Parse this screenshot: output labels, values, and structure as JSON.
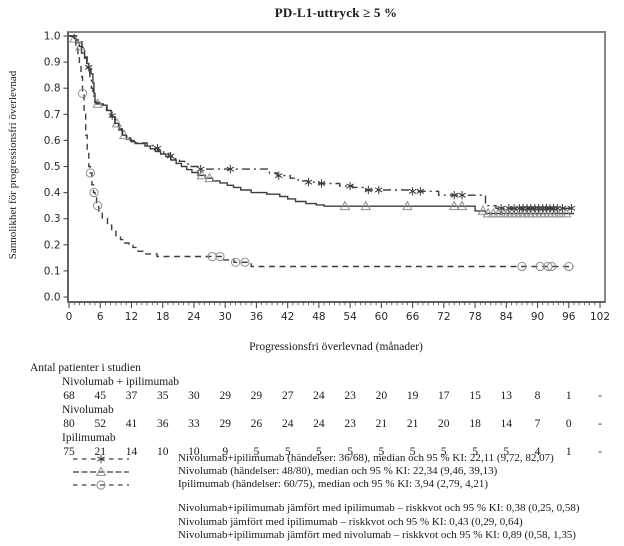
{
  "title": "PD-L1-uttryck ≥ 5 %",
  "colors": {
    "curve": "#3d3d3d",
    "frame": "#868686",
    "axis": "#4a4a4a",
    "censor_light": "#8f8f8f",
    "text": "#1a1a1a"
  },
  "chart_data": {
    "type": "line",
    "subtype": "kaplan-meier-step",
    "title": "PD-L1-uttryck ≥ 5 %",
    "xlabel": "Progressionsfri överlevnad (månader)",
    "ylabel": "Sannolikhet för progressionsfri överlevnad",
    "xlim": [
      0,
      102
    ],
    "ylim": [
      0.0,
      1.0
    ],
    "xticks": [
      0,
      6,
      12,
      18,
      24,
      30,
      36,
      42,
      48,
      54,
      60,
      66,
      72,
      78,
      84,
      90,
      96,
      102
    ],
    "yticklabels": [
      "0.0",
      "0.1",
      "0.2",
      "0.3",
      "0.4",
      "0.5",
      "0.6",
      "0.7",
      "0.8",
      "0.9",
      "1.0"
    ],
    "grid": false,
    "legend_position": "below",
    "series": [
      {
        "id": "ipi",
        "name": "Ipilimumab",
        "line_style": "dashed",
        "marker": "circle",
        "points": [
          [
            0,
            1.0
          ],
          [
            0.8,
            0.985
          ],
          [
            1.3,
            0.96
          ],
          [
            1.7,
            0.93
          ],
          [
            2,
            0.89
          ],
          [
            2.3,
            0.845
          ],
          [
            2.6,
            0.78
          ],
          [
            2.9,
            0.7
          ],
          [
            3.2,
            0.62
          ],
          [
            3.5,
            0.55
          ],
          [
            3.8,
            0.5
          ],
          [
            4.1,
            0.475
          ],
          [
            4.4,
            0.43
          ],
          [
            4.7,
            0.4
          ],
          [
            5,
            0.38
          ],
          [
            5.3,
            0.35
          ],
          [
            5.7,
            0.33
          ],
          [
            6.4,
            0.3
          ],
          [
            7.4,
            0.275
          ],
          [
            8.2,
            0.252
          ],
          [
            9,
            0.235
          ],
          [
            9.9,
            0.22
          ],
          [
            10.7,
            0.207
          ],
          [
            11.5,
            0.198
          ],
          [
            12.3,
            0.19
          ],
          [
            13.3,
            0.175
          ],
          [
            14.2,
            0.165
          ],
          [
            16.9,
            0.155
          ],
          [
            29.5,
            0.142
          ],
          [
            31.7,
            0.133
          ],
          [
            35,
            0.117
          ],
          [
            97,
            0.117
          ]
        ],
        "censor_months": [
          2.6,
          4.1,
          4.8,
          5.5,
          27.5,
          29,
          32,
          33.8,
          87,
          90.5,
          92,
          92.7,
          96
        ]
      },
      {
        "id": "nivo",
        "name": "Nivolumab",
        "line_style": "solid",
        "marker": "triangle",
        "points": [
          [
            0,
            1.0
          ],
          [
            1,
            0.99
          ],
          [
            1.4,
            0.975
          ],
          [
            2,
            0.96
          ],
          [
            2.4,
            0.935
          ],
          [
            3,
            0.915
          ],
          [
            3.4,
            0.895
          ],
          [
            3.8,
            0.875
          ],
          [
            4.2,
            0.855
          ],
          [
            4.6,
            0.82
          ],
          [
            4.8,
            0.78
          ],
          [
            5,
            0.75
          ],
          [
            5.2,
            0.74
          ],
          [
            6.6,
            0.735
          ],
          [
            7.3,
            0.715
          ],
          [
            8.1,
            0.69
          ],
          [
            8.9,
            0.665
          ],
          [
            9.6,
            0.64
          ],
          [
            10.3,
            0.62
          ],
          [
            11,
            0.605
          ],
          [
            11.9,
            0.595
          ],
          [
            12.7,
            0.588
          ],
          [
            14.6,
            0.578
          ],
          [
            15.6,
            0.568
          ],
          [
            16.6,
            0.558
          ],
          [
            17.6,
            0.548
          ],
          [
            18.6,
            0.538
          ],
          [
            19.6,
            0.525
          ],
          [
            20.6,
            0.512
          ],
          [
            21.6,
            0.5
          ],
          [
            22.6,
            0.488
          ],
          [
            23.6,
            0.477
          ],
          [
            24.8,
            0.466
          ],
          [
            26.2,
            0.455
          ],
          [
            27.6,
            0.445
          ],
          [
            29,
            0.437
          ],
          [
            30.4,
            0.428
          ],
          [
            31.6,
            0.42
          ],
          [
            33,
            0.41
          ],
          [
            35,
            0.4
          ],
          [
            38,
            0.394
          ],
          [
            40.5,
            0.385
          ],
          [
            42,
            0.376
          ],
          [
            43.5,
            0.366
          ],
          [
            45.5,
            0.358
          ],
          [
            47.5,
            0.353
          ],
          [
            49,
            0.348
          ],
          [
            78,
            0.33
          ],
          [
            80,
            0.32
          ],
          [
            97,
            0.32
          ]
        ],
        "censor_months": [
          1,
          2.2,
          5.5,
          9.2,
          10.6,
          25.5,
          27,
          53,
          57,
          65,
          74,
          75.5,
          79.5,
          80.5,
          81.5,
          82.5,
          83.5,
          84.3,
          85.1,
          85.9,
          86.7,
          87.5,
          88.3,
          89.1,
          89.9,
          90.7,
          91.4,
          92.1,
          92.8,
          93.6,
          94.5,
          95.5
        ]
      },
      {
        "id": "nivo-ipi",
        "name": "Nivolumab+ipilimumab",
        "line_style": "dashdot",
        "marker": "asterisk",
        "points": [
          [
            0,
            1.0
          ],
          [
            1.5,
            0.985
          ],
          [
            2.5,
            0.955
          ],
          [
            3,
            0.92
          ],
          [
            3.5,
            0.88
          ],
          [
            4,
            0.84
          ],
          [
            4.3,
            0.8
          ],
          [
            4.6,
            0.77
          ],
          [
            5,
            0.745
          ],
          [
            6.5,
            0.735
          ],
          [
            7.2,
            0.715
          ],
          [
            8,
            0.695
          ],
          [
            8.8,
            0.665
          ],
          [
            9.5,
            0.645
          ],
          [
            10.2,
            0.625
          ],
          [
            11,
            0.61
          ],
          [
            11.8,
            0.6
          ],
          [
            12.6,
            0.59
          ],
          [
            15,
            0.58
          ],
          [
            16.2,
            0.57
          ],
          [
            17.2,
            0.56
          ],
          [
            18.2,
            0.55
          ],
          [
            19.2,
            0.54
          ],
          [
            20.2,
            0.53
          ],
          [
            21.2,
            0.52
          ],
          [
            22.2,
            0.51
          ],
          [
            23.2,
            0.5
          ],
          [
            25,
            0.49
          ],
          [
            38.5,
            0.475
          ],
          [
            40,
            0.465
          ],
          [
            42.5,
            0.455
          ],
          [
            44,
            0.445
          ],
          [
            46,
            0.44
          ],
          [
            48,
            0.435
          ],
          [
            52,
            0.425
          ],
          [
            54.5,
            0.42
          ],
          [
            57,
            0.41
          ],
          [
            66,
            0.405
          ],
          [
            71,
            0.39
          ],
          [
            80,
            0.35
          ],
          [
            82,
            0.34
          ],
          [
            97,
            0.34
          ]
        ],
        "censor_months": [
          3.8,
          8.3,
          17,
          19.5,
          25.3,
          31,
          40.3,
          46,
          48.5,
          54,
          57.5,
          59.5,
          66,
          67.5,
          74,
          75.5,
          83,
          84.5,
          85.5,
          86.5,
          87.2,
          88,
          88.7,
          89.5,
          90.2,
          91,
          91.7,
          92.4,
          93.1,
          93.8,
          94.8,
          96.5
        ]
      }
    ]
  },
  "risk_table": {
    "heading": "Antal patienter i studien",
    "timepoints": [
      0,
      6,
      12,
      18,
      24,
      30,
      36,
      42,
      48,
      54,
      60,
      66,
      72,
      78,
      84,
      90,
      96,
      102
    ],
    "rows": [
      {
        "label": "Nivolumab + ipilimumab",
        "values": [
          "68",
          "45",
          "37",
          "35",
          "30",
          "29",
          "29",
          "27",
          "24",
          "23",
          "20",
          "19",
          "17",
          "15",
          "13",
          "8",
          "1",
          "-"
        ]
      },
      {
        "label": "Nivolumab",
        "values": [
          "80",
          "52",
          "41",
          "36",
          "33",
          "29",
          "26",
          "24",
          "24",
          "23",
          "21",
          "21",
          "20",
          "18",
          "14",
          "7",
          "0",
          "-"
        ]
      },
      {
        "label": "Ipilimumab",
        "values": [
          "75",
          "21",
          "14",
          "10",
          "10",
          "9",
          "5",
          "5",
          "5",
          "5",
          "5",
          "5",
          "5",
          "5",
          "5",
          "4",
          "1",
          "-"
        ]
      }
    ]
  },
  "legend": {
    "entries": [
      {
        "marker": "asterisk",
        "dash": "spaced",
        "label": "Nivolumab+ipilimumab (händelser: 36/68), median och 95 % KI: 22,11 (9,72, 82,07)"
      },
      {
        "marker": "triangle",
        "dash": "dense",
        "label": "Nivolumab (händelser: 48/80), median och 95 % KI: 22,34 (9,46, 39,13)"
      },
      {
        "marker": "circle",
        "dash": "spaced",
        "label": "Ipilimumab (händelser: 60/75), median och 95 % KI: 3,94 (2,79, 4,21)"
      }
    ]
  },
  "footnotes": [
    "Nivolumab+ipilimumab jämfört med ipilimumab – riskkvot och 95 % KI: 0,38 (0,25, 0,58)",
    "Nivolumab jämfört med ipilimumab – riskkvot och 95 % KI: 0,43 (0,29, 0,64)",
    "Nivolumab+ipilimumab jämfört med nivolumab – riskkvot och 95 % KI: 0,89 (0,58, 1,35)"
  ]
}
